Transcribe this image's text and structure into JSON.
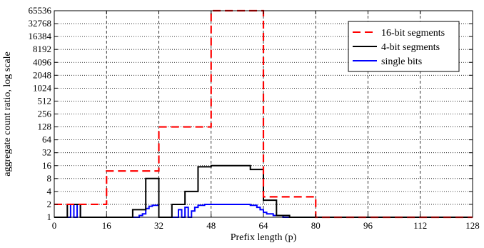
{
  "chart_data": {
    "type": "line",
    "title": "",
    "xlabel": "Prefix length (p)",
    "ylabel": "aggregate count ratio, log scale",
    "y_scale": "log2",
    "grid": true,
    "legend_position": "top-right",
    "xlim": [
      0,
      128
    ],
    "ylim": [
      1,
      65536
    ],
    "x_ticks": [
      "0",
      "16",
      "32",
      "48",
      "64",
      "80",
      "96",
      "112",
      "128"
    ],
    "x_tick_values": [
      0,
      16,
      32,
      48,
      64,
      80,
      96,
      112,
      128
    ],
    "y_ticks": [
      "1",
      "2",
      "4",
      "8",
      "16",
      "32",
      "64",
      "128",
      "256",
      "512",
      "1024",
      "2048",
      "4096",
      "8192",
      "16384",
      "32768",
      "65536"
    ],
    "y_tick_values": [
      1,
      2,
      4,
      8,
      16,
      32,
      64,
      128,
      256,
      512,
      1024,
      2048,
      4096,
      8192,
      16384,
      32768,
      65536
    ],
    "series": [
      {
        "name": "16-bit segments",
        "color": "#ff0000",
        "dash": "dashed",
        "points": [
          [
            0,
            2
          ],
          [
            16,
            2
          ],
          [
            16,
            12
          ],
          [
            32,
            12
          ],
          [
            32,
            128
          ],
          [
            48,
            128
          ],
          [
            48,
            65536
          ],
          [
            64,
            65536
          ],
          [
            64,
            3
          ],
          [
            80,
            3
          ],
          [
            80,
            1
          ],
          [
            128,
            1
          ]
        ]
      },
      {
        "name": "4-bit segments",
        "color": "#000000",
        "dash": "solid",
        "points": [
          [
            0,
            1
          ],
          [
            4,
            1
          ],
          [
            4,
            2
          ],
          [
            8,
            2
          ],
          [
            8,
            1
          ],
          [
            24,
            1
          ],
          [
            24,
            1.5
          ],
          [
            28,
            1.5
          ],
          [
            28,
            8
          ],
          [
            32,
            8
          ],
          [
            32,
            1
          ],
          [
            36,
            1
          ],
          [
            36,
            2
          ],
          [
            40,
            2
          ],
          [
            40,
            4
          ],
          [
            44,
            4
          ],
          [
            44,
            15
          ],
          [
            48,
            15
          ],
          [
            48,
            16
          ],
          [
            60,
            16
          ],
          [
            60,
            13
          ],
          [
            64,
            13
          ],
          [
            64,
            2.5
          ],
          [
            68,
            2.5
          ],
          [
            68,
            1.1
          ],
          [
            72,
            1.1
          ],
          [
            72,
            1
          ],
          [
            128,
            1
          ]
        ]
      },
      {
        "name": "single bits",
        "color": "#0000ff",
        "dash": "solid",
        "points": [
          [
            0,
            1
          ],
          [
            5,
            1
          ],
          [
            5,
            2
          ],
          [
            6,
            2
          ],
          [
            6,
            1
          ],
          [
            7,
            1
          ],
          [
            7,
            2
          ],
          [
            8,
            2
          ],
          [
            8,
            1
          ],
          [
            26,
            1
          ],
          [
            26,
            1.1
          ],
          [
            27,
            1.1
          ],
          [
            27,
            1.2
          ],
          [
            28,
            1.2
          ],
          [
            28,
            1.6
          ],
          [
            29,
            1.6
          ],
          [
            29,
            1.8
          ],
          [
            30,
            1.8
          ],
          [
            30,
            1.9
          ],
          [
            32,
            1.9
          ],
          [
            32,
            1
          ],
          [
            38,
            1
          ],
          [
            38,
            1.5
          ],
          [
            39,
            1.5
          ],
          [
            39,
            1
          ],
          [
            40,
            1
          ],
          [
            40,
            1.7
          ],
          [
            41,
            1.7
          ],
          [
            41,
            1
          ],
          [
            42,
            1
          ],
          [
            42,
            1.4
          ],
          [
            43,
            1.4
          ],
          [
            43,
            1.7
          ],
          [
            44,
            1.7
          ],
          [
            44,
            1.9
          ],
          [
            46,
            1.9
          ],
          [
            46,
            2
          ],
          [
            60,
            2
          ],
          [
            60,
            1.9
          ],
          [
            62,
            1.9
          ],
          [
            62,
            1.7
          ],
          [
            63,
            1.7
          ],
          [
            63,
            1.5
          ],
          [
            64,
            1.5
          ],
          [
            64,
            1.3
          ],
          [
            65,
            1.3
          ],
          [
            65,
            1.2
          ],
          [
            67,
            1.2
          ],
          [
            67,
            1.1
          ],
          [
            70,
            1.1
          ],
          [
            70,
            1
          ],
          [
            128,
            1
          ]
        ]
      }
    ]
  }
}
